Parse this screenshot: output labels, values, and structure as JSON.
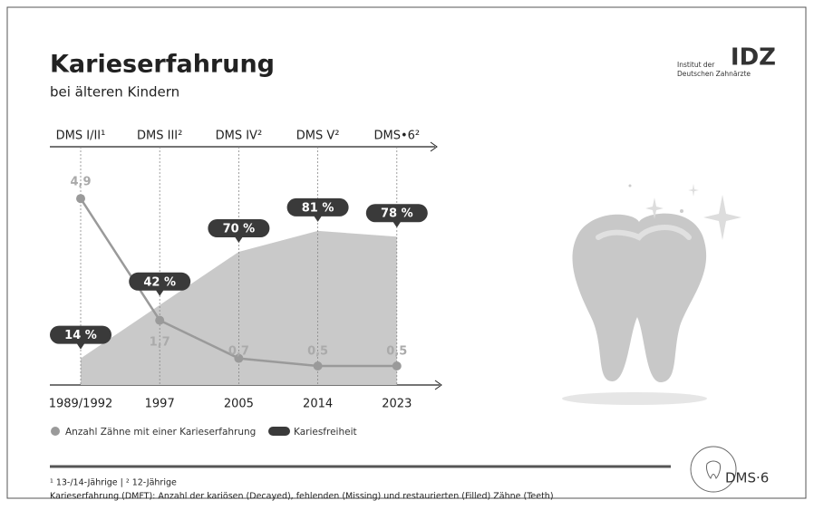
{
  "header": {
    "title": "Karieserfahrung",
    "subtitle": "bei älteren Kindern"
  },
  "logo": {
    "line1": "Institut der",
    "line2": "Deutschen Zahnärzte",
    "mark": "IDZ",
    "dms": "DMS·6"
  },
  "footnotes": [
    "¹ 13-/14-Jährige | ² 12-Jährige",
    "Karieserfahrung (DMFT): Anzahl der kariösen (Decayed), fehlenden (Missing) und restaurierten (Filled) Zähne (Teeth)"
  ],
  "chart_data": {
    "type": "line-area",
    "categories": [
      "1989/1992",
      "1997",
      "2005",
      "2014",
      "2023"
    ],
    "top_labels": [
      "DMS I/II¹",
      "DMS III²",
      "DMS IV²",
      "DMS V²",
      "DMS•6²"
    ],
    "ylim": [
      0,
      100
    ],
    "y2lim": [
      0,
      5
    ],
    "series": [
      {
        "name": "Anzahl Zähne mit einer Karieserfahrung",
        "color": "#9a9a9a",
        "axis": "y2",
        "values": [
          4.9,
          1.7,
          0.7,
          0.5,
          0.5
        ],
        "value_labels": [
          "4,9",
          "1,7",
          "0,7",
          "0,5",
          "0,5"
        ]
      },
      {
        "name": "Kariesfreiheit",
        "color": "#3a3a3a",
        "area_color": "#c9c9c9",
        "values": [
          14,
          42,
          70,
          81,
          78
        ],
        "value_labels": [
          "14 %",
          "42 %",
          "70 %",
          "81 %",
          "78 %"
        ]
      }
    ]
  }
}
